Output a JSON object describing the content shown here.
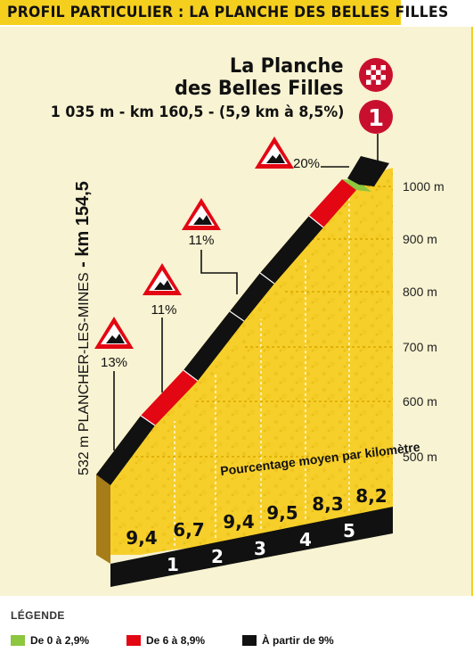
{
  "header": {
    "title": "PROFIL PARTICULIER : LA PLANCHE DES BELLES FILLES"
  },
  "summit": {
    "name_line1": "La Planche",
    "name_line2": "des Belles Filles",
    "info": "1 035 m - km 160,5 - (5,9 km à 8,5%)",
    "category": "1"
  },
  "start": {
    "altitude": "532 m PLANCHER-LES-MINES",
    "km": "km 154,5",
    "separator": " - "
  },
  "altitude_ticks": [
    "500 m",
    "600 m",
    "700 m",
    "800 m",
    "900 m",
    "1000 m"
  ],
  "km_markers": [
    "1",
    "2",
    "3",
    "4",
    "5"
  ],
  "chart_data": {
    "type": "area",
    "title": "Pourcentage moyen par kilomètre",
    "kilometres": [
      "0-1",
      "1-2",
      "2-3",
      "3-4",
      "4-5",
      "5-5,9"
    ],
    "avg_gradient_pct_labels": [
      "9,4",
      "6,7",
      "9,4",
      "9,5",
      "8,3",
      "8,2"
    ],
    "avg_gradient_pct": [
      9.4,
      6.7,
      9.4,
      9.5,
      8.3,
      8.2
    ],
    "start_altitude_m": 532,
    "summit_altitude_m": 1035,
    "y_ticks_m": [
      500,
      600,
      700,
      800,
      900,
      1000
    ],
    "max_gradient_markers": [
      "13%",
      "11%",
      "11%",
      "20%"
    ],
    "colors": {
      "low": "#8dc63f",
      "medium": "#e30613",
      "high": "#111111"
    }
  },
  "legend": {
    "title": "LÉGENDE",
    "items": [
      {
        "label": "De 0 à 2,9%",
        "color": "#8dc63f"
      },
      {
        "label": "De 6 à 8,9%",
        "color": "#e30613"
      },
      {
        "label": "À partir de 9%",
        "color": "#111111"
      }
    ]
  }
}
